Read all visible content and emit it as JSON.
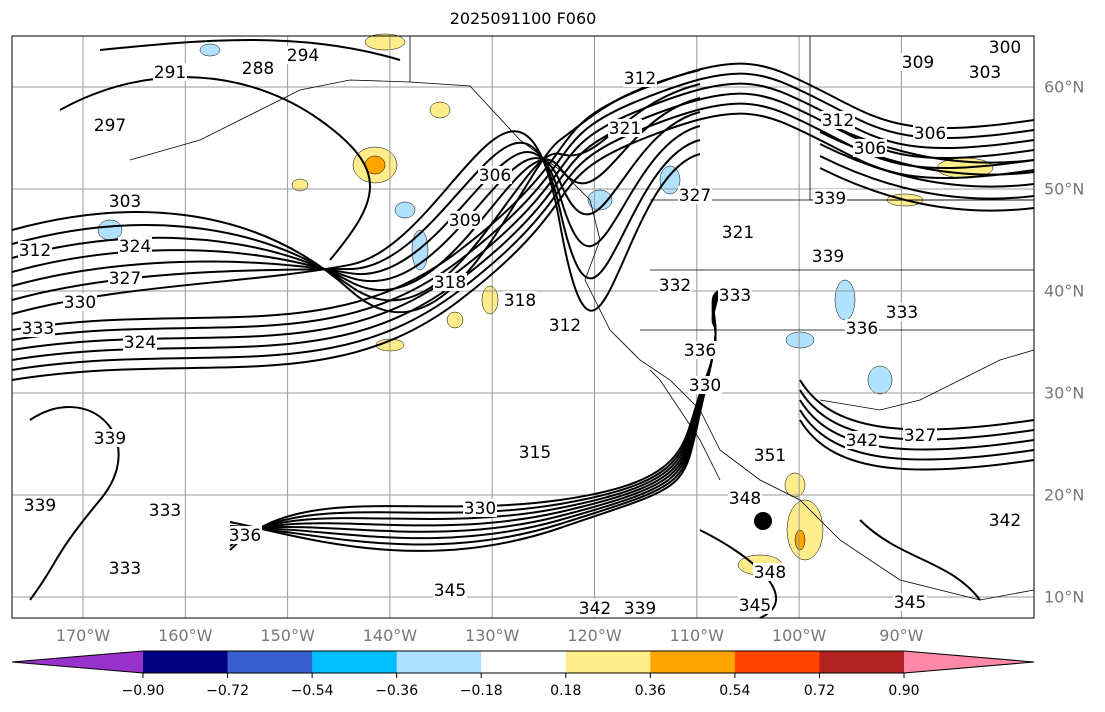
{
  "title": "2025091100 F060",
  "lon_labels": [
    "170°W",
    "160°W",
    "150°W",
    "140°W",
    "130°W",
    "120°W",
    "110°W",
    "100°W",
    "90°W"
  ],
  "lat_labels": [
    "60°N",
    "50°N",
    "40°N",
    "30°N",
    "20°N",
    "10°N"
  ],
  "colorbar": {
    "colors": [
      "#9932CC",
      "#000080",
      "#3A5FCD",
      "#00BFFF",
      "#B0E2FF",
      "#FFFFFF",
      "#FFEC8B",
      "#FFA500",
      "#FF4500",
      "#B22222",
      "#FF88AA"
    ],
    "tick_labels": [
      "−0.90",
      "−0.72",
      "−0.54",
      "−0.36",
      "−0.18",
      "0.18",
      "0.36",
      "0.54",
      "0.72",
      "0.90"
    ]
  },
  "contour_labels": [
    "291",
    "288",
    "294",
    "297",
    "303",
    "324",
    "312",
    "327",
    "330",
    "333",
    "324",
    "309",
    "306",
    "318",
    "321",
    "312",
    "318",
    "312",
    "327",
    "321",
    "332",
    "333",
    "336",
    "339",
    "339",
    "306",
    "309",
    "303",
    "306",
    "312",
    "333",
    "336",
    "327",
    "342",
    "339",
    "333",
    "336",
    "333",
    "339",
    "330",
    "315",
    "345",
    "342",
    "339",
    "351",
    "348",
    "348",
    "345",
    "345",
    "342",
    "330",
    "300"
  ]
}
